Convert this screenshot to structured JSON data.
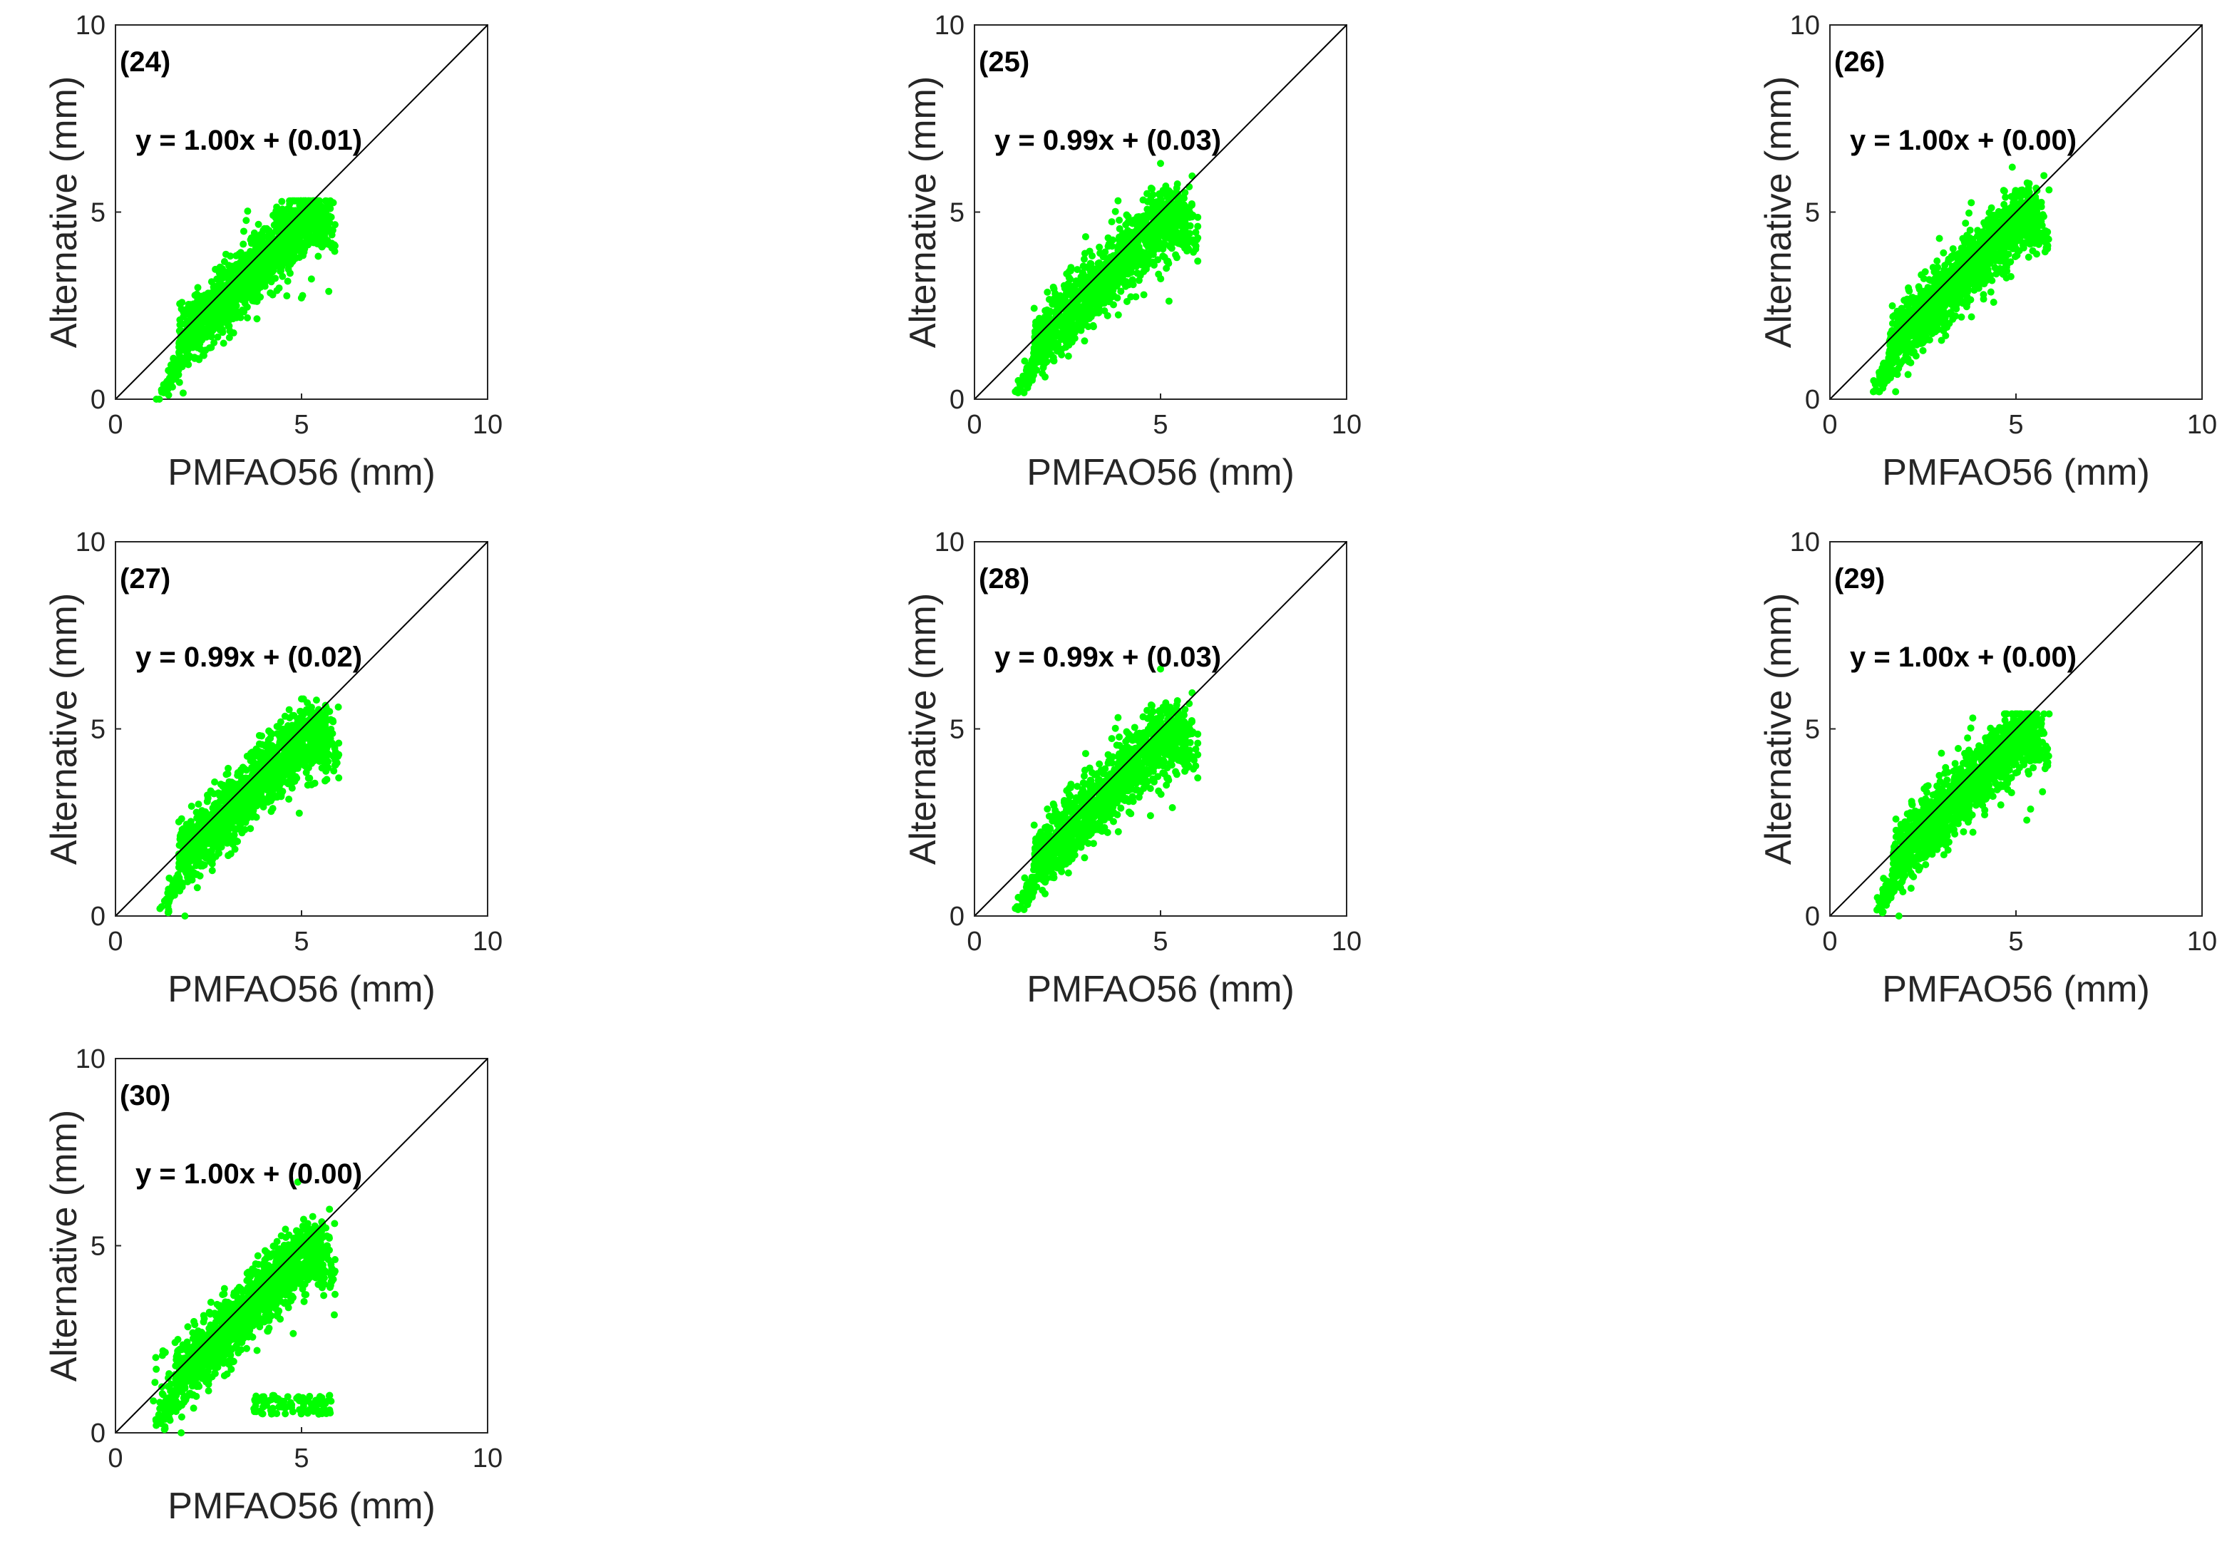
{
  "chart_data": [
    {
      "type": "scatter",
      "panel_label": "(24)",
      "equation": "y = 1.00x + (0.01)",
      "xlabel": "PMFAO56 (mm)",
      "ylabel": "Alternative (mm)",
      "xlim": [
        0,
        10
      ],
      "ylim": [
        0,
        10
      ],
      "xticks": [
        "0",
        "5",
        "10"
      ],
      "yticks": [
        "0",
        "5",
        "10"
      ],
      "reference_line": "1:1",
      "marker_color": "#00ff00",
      "line_color": "#000000",
      "cloud": {
        "x_min": 1.1,
        "x_max": 5.9,
        "y_min": 0.0,
        "y_max": 5.3,
        "slope": 1.0,
        "intercept": 0.01
      }
    },
    {
      "type": "scatter",
      "panel_label": "(25)",
      "equation": "y = 0.99x + (0.03)",
      "xlabel": "PMFAO56 (mm)",
      "ylabel": "Alternative (mm)",
      "xlim": [
        0,
        10
      ],
      "ylim": [
        0,
        10
      ],
      "xticks": [
        "0",
        "5",
        "10"
      ],
      "yticks": [
        "0",
        "5",
        "10"
      ],
      "reference_line": "1:1",
      "marker_color": "#00ff00",
      "line_color": "#000000",
      "cloud": {
        "x_min": 1.0,
        "x_max": 6.0,
        "y_min": 0.0,
        "y_max": 6.3,
        "slope": 0.99,
        "intercept": 0.03
      }
    },
    {
      "type": "scatter",
      "panel_label": "(26)",
      "equation": "y = 1.00x + (0.00)",
      "xlabel": "PMFAO56 (mm)",
      "ylabel": "Alternative (mm)",
      "xlim": [
        0,
        10
      ],
      "ylim": [
        0,
        10
      ],
      "xticks": [
        "0",
        "5",
        "10"
      ],
      "yticks": [
        "0",
        "5",
        "10"
      ],
      "reference_line": "1:1",
      "marker_color": "#00ff00",
      "line_color": "#000000",
      "cloud": {
        "x_min": 1.0,
        "x_max": 5.9,
        "y_min": 0.2,
        "y_max": 6.2,
        "slope": 1.0,
        "intercept": 0.0
      }
    },
    {
      "type": "scatter",
      "panel_label": "(27)",
      "equation": "y = 0.99x + (0.02)",
      "xlabel": "PMFAO56 (mm)",
      "ylabel": "Alternative (mm)",
      "xlim": [
        0,
        10
      ],
      "ylim": [
        0,
        10
      ],
      "xticks": [
        "0",
        "5",
        "10"
      ],
      "yticks": [
        "0",
        "5",
        "10"
      ],
      "reference_line": "1:1",
      "marker_color": "#00ff00",
      "line_color": "#000000",
      "cloud": {
        "x_min": 1.1,
        "x_max": 6.0,
        "y_min": 0.0,
        "y_max": 5.8,
        "slope": 0.99,
        "intercept": 0.02
      }
    },
    {
      "type": "scatter",
      "panel_label": "(28)",
      "equation": "y = 0.99x + (0.03)",
      "xlabel": "PMFAO56 (mm)",
      "ylabel": "Alternative (mm)",
      "xlim": [
        0,
        10
      ],
      "ylim": [
        0,
        10
      ],
      "xticks": [
        "0",
        "5",
        "10"
      ],
      "yticks": [
        "0",
        "5",
        "10"
      ],
      "reference_line": "1:1",
      "marker_color": "#00ff00",
      "line_color": "#000000",
      "cloud": {
        "x_min": 1.0,
        "x_max": 6.0,
        "y_min": 0.0,
        "y_max": 6.6,
        "slope": 0.99,
        "intercept": 0.03
      }
    },
    {
      "type": "scatter",
      "panel_label": "(29)",
      "equation": "y = 1.00x + (0.00)",
      "xlabel": "PMFAO56 (mm)",
      "ylabel": "Alternative (mm)",
      "xlim": [
        0,
        10
      ],
      "ylim": [
        0,
        10
      ],
      "xticks": [
        "0",
        "5",
        "10"
      ],
      "yticks": [
        "0",
        "5",
        "10"
      ],
      "reference_line": "1:1",
      "marker_color": "#00ff00",
      "line_color": "#000000",
      "cloud": {
        "x_min": 1.1,
        "x_max": 5.9,
        "y_min": 0.0,
        "y_max": 5.4,
        "slope": 1.0,
        "intercept": 0.0
      }
    },
    {
      "type": "scatter",
      "panel_label": "(30)",
      "equation": "y = 1.00x + (0.00)",
      "xlabel": "PMFAO56 (mm)",
      "ylabel": "Alternative (mm)",
      "xlim": [
        0,
        10
      ],
      "ylim": [
        0,
        10
      ],
      "xticks": [
        "0",
        "5",
        "10"
      ],
      "yticks": [
        "0",
        "5",
        "10"
      ],
      "reference_line": "1:1",
      "marker_color": "#00ff00",
      "line_color": "#000000",
      "cloud": {
        "x_min": 1.0,
        "x_max": 5.9,
        "y_min": 0.0,
        "y_max": 6.7,
        "slope": 1.0,
        "intercept": 0.0,
        "secondary_cluster": {
          "x_min": 3.7,
          "x_max": 5.8,
          "y_min": 0.5,
          "y_max": 1.0
        }
      }
    }
  ]
}
